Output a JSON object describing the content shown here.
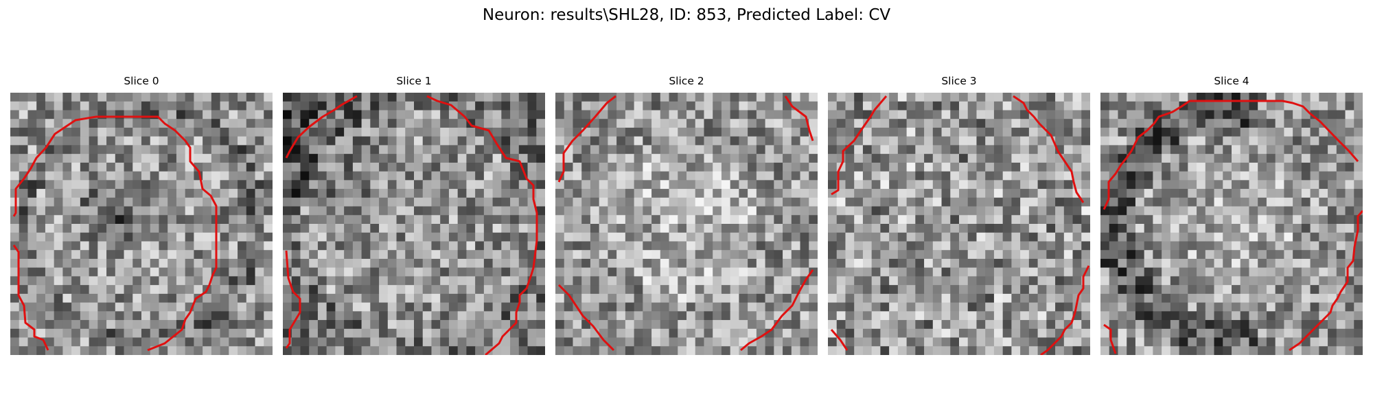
{
  "figure": {
    "title": "Neuron: results\\SHL28, ID: 853, Predicted Label: CV"
  },
  "contour_color": "#e01010",
  "panels": [
    {
      "title": "Slice 0",
      "seed": 11,
      "pattern": "center-dark",
      "contour": "open-both-sides"
    },
    {
      "title": "Slice 1",
      "seed": 23,
      "pattern": "left-dark",
      "contour": "top-gap"
    },
    {
      "title": "Slice 2",
      "seed": 37,
      "pattern": "light-center",
      "contour": "corners-only"
    },
    {
      "title": "Slice 3",
      "seed": 41,
      "pattern": "noisy",
      "contour": "top-right-left-arcs"
    },
    {
      "title": "Slice 4",
      "seed": 59,
      "pattern": "left-dark-ring",
      "contour": "broad-arc"
    }
  ]
}
